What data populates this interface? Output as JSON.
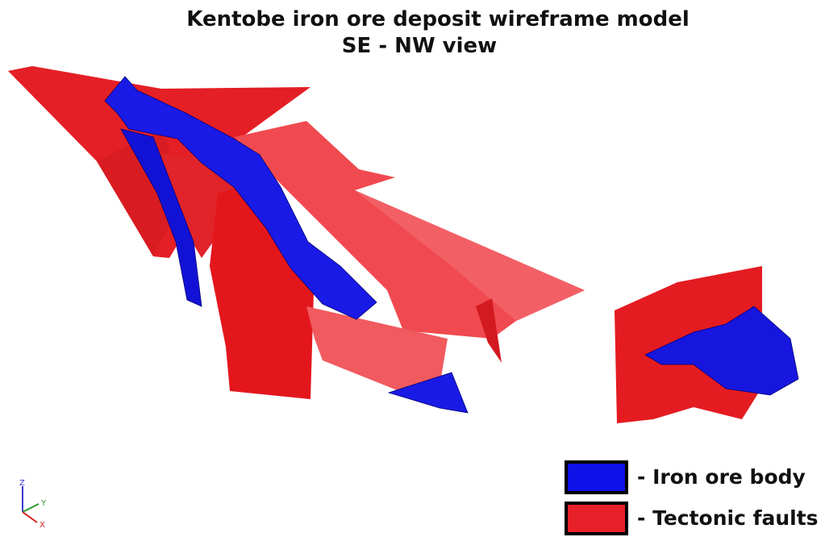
{
  "title": "Kentobe iron ore deposit wireframe model",
  "subtitle": "SE - NW view",
  "legend": [
    {
      "label": "- Iron ore body",
      "color": "#1010e8"
    },
    {
      "label": "- Tectonic faults",
      "color": "#e8202a"
    }
  ],
  "axes": {
    "z": "Z",
    "y": "Y",
    "x": "X"
  }
}
